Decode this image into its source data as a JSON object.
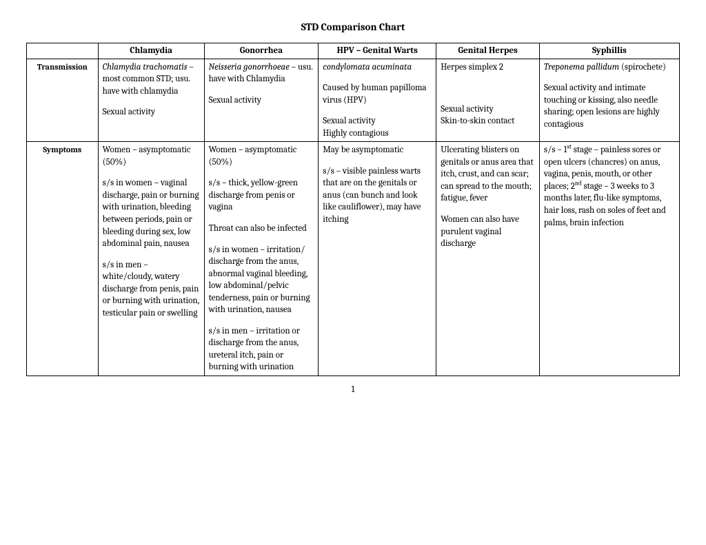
{
  "title": "STD Comparison Chart",
  "page_number": "1",
  "columns": [
    "Chlamydia",
    "Gonorrhea",
    "HPV – Genital Warts",
    "Genital Herpes",
    "Syphillis"
  ],
  "rows": [
    {
      "label": "Transmission",
      "cells": [
        "<p><span class=\"italic\">Chlamydia trachomatis</span> – most common STD; usu. have with chlamydia</p><p>Sexual activity</p>",
        "<p><span class=\"italic\">Neisseria gonorrhoeae</span> – usu. have with Chlamydia</p><p>Sexual activity</p>",
        "<p><span class=\"italic\">condylomata acuminata</span></p><p>Caused by human papilloma virus (HPV)</p><p>Sexual activity<br>Highly contagious</p>",
        "<p>Herpes simplex 2</p><p>&nbsp;</p><p>Sexual activity<br>Skin-to-skin contact</p>",
        "<p><span class=\"italic\">Treponema pallidum</span> (spirochete)</p><p>Sexual activity and intimate touching or kissing, also needle sharing; open lesions are highly contagious</p>"
      ]
    },
    {
      "label": "Symptoms",
      "cells": [
        "<p>Women – asymptomatic (50%)</p><p>s/s in women – vaginal discharge, pain or burning with urination, bleeding between periods, pain or bleeding during sex, low abdominal pain, nausea</p><p>s/s in men – white/cloudy, watery discharge from penis, pain or burning with urination, testicular pain or swelling</p>",
        "<p>Women – asymptomatic (50%)</p><p>s/s – thick, yellow-green discharge from penis or vagina</p><p>Throat can also be infected</p><p>s/s in women – irritation/ discharge from the anus, abnormal vaginal bleeding, low abdominal/pelvic tenderness, pain or burning with urination, nausea</p><p>s/s in men – irritation or discharge from the anus, ureteral itch, pain or burning with urination</p>",
        "<p>May be asymptomatic</p><p>s/s – visible painless warts that are on the genitals or anus (can bunch and look like cauliflower), may have itching</p>",
        "<p>Ulcerating blisters on genitals or anus area that itch, crust, and can scar; can spread to the mouth; fatigue, fever</p><p>Women can also have purulent vaginal discharge</p>",
        "<p>s/s – 1<span class=\"sup\">st</span> stage – painless sores or open ulcers (chancres) on anus, vagina, penis, mouth, or other places; 2<span class=\"sup\">nd</span> stage – 3 weeks to 3 months later, flu-like symptoms, hair loss, rash on soles of feet and palms, brain infection</p>"
      ]
    }
  ]
}
